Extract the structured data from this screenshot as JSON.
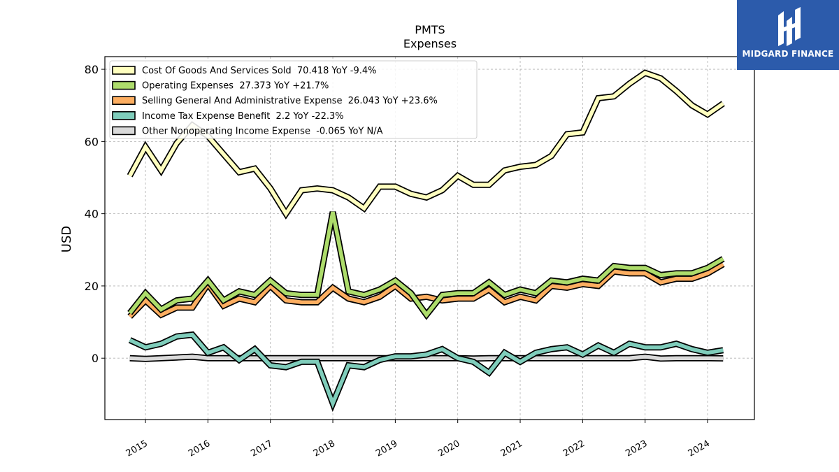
{
  "logo": {
    "text": "MIDGARD FINANCE"
  },
  "chart_data": {
    "type": "line",
    "title": "PMTS",
    "subtitle": "Expenses",
    "xlabel": "",
    "ylabel": "USD",
    "ylim": [
      -17,
      83.5
    ],
    "xlim": [
      2014.35,
      2024.75
    ],
    "yticks": [
      0,
      20,
      40,
      60,
      80
    ],
    "xticks": [
      "2015",
      "2016",
      "2017",
      "2018",
      "2019",
      "2020",
      "2021",
      "2022",
      "2023",
      "2024"
    ],
    "grid": true,
    "legend_position": "top-left",
    "x": [
      2014.75,
      2015.0,
      2015.25,
      2015.5,
      2015.75,
      2016.0,
      2016.25,
      2016.5,
      2016.75,
      2017.0,
      2017.25,
      2017.5,
      2017.75,
      2018.0,
      2018.25,
      2018.5,
      2018.75,
      2019.0,
      2019.25,
      2019.5,
      2019.75,
      2020.0,
      2020.25,
      2020.5,
      2020.75,
      2021.0,
      2021.25,
      2021.5,
      2021.75,
      2022.0,
      2022.25,
      2022.5,
      2022.75,
      2023.0,
      2023.25,
      2023.5,
      2023.75,
      2024.0,
      2024.25
    ],
    "series": [
      {
        "name": "Cost Of Goods And Services Sold",
        "legend": "Cost Of Goods And Services Sold  70.418 YoY -9.4%",
        "color": "#ffffbf",
        "values": [
          50.5,
          58.5,
          52.0,
          59.5,
          64.5,
          61.5,
          56.5,
          51.5,
          52.5,
          47.0,
          40.0,
          46.5,
          47.0,
          46.5,
          44.5,
          41.5,
          47.5,
          47.5,
          45.5,
          44.5,
          46.5,
          50.5,
          48.0,
          48.0,
          52.0,
          53.0,
          53.5,
          56.0,
          62.0,
          62.5,
          72.0,
          72.5,
          76.0,
          79.0,
          77.5,
          74.0,
          70.0,
          67.5,
          70.5
        ]
      },
      {
        "name": "Operating Expenses",
        "legend": "Operating Expenses  27.373 YoY +21.7%",
        "color": "#addc6b",
        "values": [
          12.5,
          18.0,
          13.5,
          16.0,
          16.5,
          21.5,
          16.0,
          18.5,
          17.5,
          21.5,
          18.0,
          17.5,
          17.5,
          40.5,
          18.5,
          17.5,
          19.0,
          21.5,
          18.0,
          12.0,
          17.5,
          18.0,
          18.0,
          21.0,
          17.5,
          19.0,
          18.0,
          21.5,
          21.0,
          22.0,
          21.5,
          25.5,
          25.0,
          25.0,
          23.0,
          23.5,
          23.5,
          25.0,
          27.5
        ]
      },
      {
        "name": "Selling General And Administrative Expense",
        "legend": "Selling General And Administrative Expense  26.043 YoY +23.6%",
        "color": "#fdae61",
        "values": [
          11.5,
          16.0,
          12.0,
          14.0,
          14.0,
          20.5,
          14.5,
          16.5,
          15.5,
          20.0,
          16.0,
          15.5,
          15.5,
          19.5,
          16.5,
          15.5,
          17.0,
          20.0,
          16.5,
          17.0,
          16.0,
          16.5,
          16.5,
          19.0,
          15.5,
          17.0,
          16.0,
          20.0,
          19.5,
          20.5,
          20.0,
          24.0,
          23.5,
          23.5,
          21.0,
          22.0,
          22.0,
          23.5,
          26.0
        ]
      },
      {
        "name": "Income Tax Expense Benefit",
        "legend": "Income Tax Expense Benefit  2.2 YoY -22.3%",
        "color": "#7fcdbb",
        "values": [
          5.0,
          3.0,
          4.0,
          6.0,
          6.5,
          1.5,
          3.0,
          -0.5,
          2.5,
          -2.0,
          -2.5,
          -1.0,
          -1.0,
          -12.5,
          -2.0,
          -2.5,
          -0.5,
          0.5,
          0.5,
          1.0,
          2.5,
          0.0,
          -1.0,
          -4.0,
          1.5,
          -1.0,
          1.5,
          2.5,
          3.0,
          1.0,
          3.5,
          1.5,
          4.0,
          3.0,
          3.0,
          4.0,
          2.5,
          1.5,
          2.2
        ]
      },
      {
        "name": "Other Nonoperating Income Expense",
        "legend": "Other Nonoperating Income Expense  -0.065 YoY N/A",
        "color": "#d9d9d9",
        "values": [
          0.0,
          -0.2,
          0.0,
          0.2,
          0.4,
          0.0,
          0.0,
          0.0,
          0.0,
          0.0,
          0.0,
          0.0,
          0.0,
          0.0,
          0.0,
          0.0,
          0.0,
          0.0,
          0.0,
          0.0,
          0.0,
          0.0,
          -0.1,
          0.0,
          0.0,
          0.0,
          0.0,
          0.0,
          0.0,
          0.0,
          0.0,
          0.0,
          0.0,
          0.4,
          -0.1,
          0.0,
          0.0,
          0.0,
          -0.065
        ]
      }
    ]
  }
}
